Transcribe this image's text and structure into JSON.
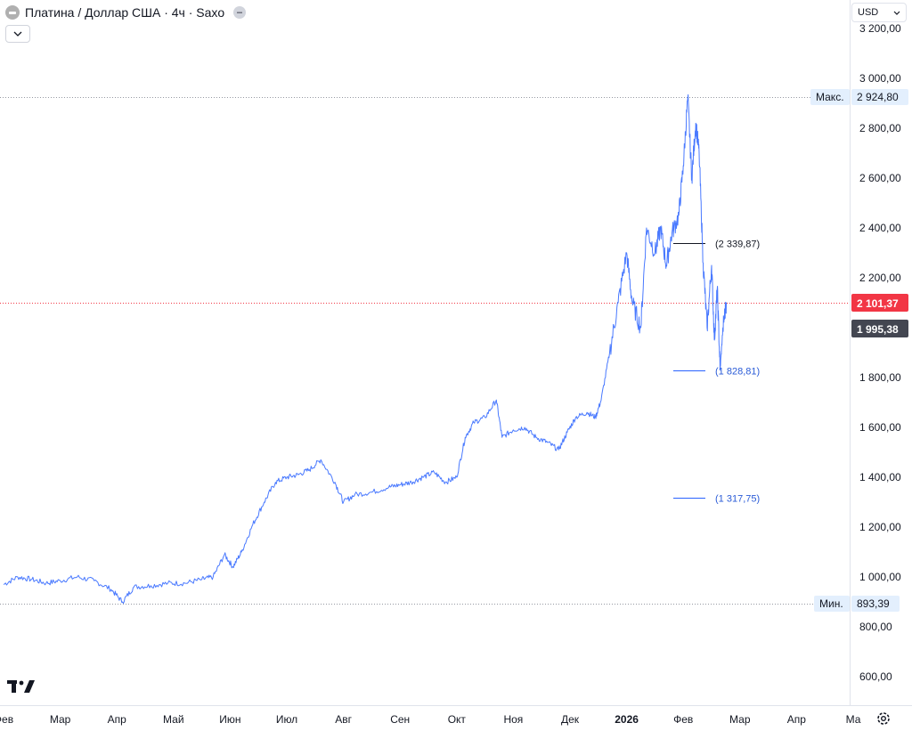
{
  "header": {
    "symbol_title": "Платина / Доллар США · 4ч · Saxo"
  },
  "currency": {
    "label": "USD"
  },
  "colors": {
    "line": "#2962ff",
    "last_price_bg": "#f23645",
    "text": "#131722",
    "grid_dots": "#9598a1"
  },
  "chart_data": {
    "type": "line",
    "x_axis_labels": [
      "Фев",
      "Мар",
      "Апр",
      "Май",
      "Июн",
      "Июл",
      "Авг",
      "Сен",
      "Окт",
      "Ноя",
      "Дек",
      "2026",
      "Фев",
      "Мар",
      "Апр",
      "Ма"
    ],
    "y_tick_labels": [
      "3 200,00",
      "3 000,00",
      "2 800,00",
      "2 600,00",
      "2 400,00",
      "2 200,00",
      "1 800,00",
      "1 600,00",
      "1 400,00",
      "1 200,00",
      "1 000,00",
      "800,00",
      "600,00"
    ],
    "y_tick_values": [
      3200,
      3000,
      2800,
      2600,
      2400,
      2200,
      1800,
      1600,
      1400,
      1200,
      1000,
      800,
      600
    ],
    "max": {
      "label": "Макс.",
      "value": 2924.8,
      "value_text": "2 924,80"
    },
    "min": {
      "label": "Мин.",
      "value": 893.39,
      "value_text": "893,39"
    },
    "last_price": {
      "value": 2101.37,
      "value_text": "2 101,37"
    },
    "price_tag": {
      "value": 1995.38,
      "value_text": "1 995,38"
    },
    "levels": [
      {
        "value": 2339.87,
        "label": "(2 339,87)"
      },
      {
        "value": 1828.81,
        "label": "(1 828,81)"
      },
      {
        "value": 1317.75,
        "label": "(1 317,75)"
      }
    ],
    "series": [
      {
        "points": [
          [
            0,
            970
          ],
          [
            0.25,
            1000
          ],
          [
            0.5,
            990
          ],
          [
            0.75,
            975
          ],
          [
            1.0,
            985
          ],
          [
            1.3,
            1000
          ],
          [
            1.6,
            985
          ],
          [
            1.9,
            950
          ],
          [
            2.1,
            900
          ],
          [
            2.3,
            960
          ],
          [
            2.6,
            965
          ],
          [
            2.9,
            975
          ],
          [
            3.2,
            975
          ],
          [
            3.5,
            990
          ],
          [
            3.7,
            1000
          ],
          [
            3.9,
            1090
          ],
          [
            4.05,
            1040
          ],
          [
            4.2,
            1100
          ],
          [
            4.4,
            1210
          ],
          [
            4.6,
            1300
          ],
          [
            4.8,
            1380
          ],
          [
            5.0,
            1400
          ],
          [
            5.2,
            1410
          ],
          [
            5.4,
            1430
          ],
          [
            5.6,
            1470
          ],
          [
            5.85,
            1380
          ],
          [
            6.0,
            1300
          ],
          [
            6.2,
            1330
          ],
          [
            6.5,
            1340
          ],
          [
            6.8,
            1360
          ],
          [
            7.0,
            1370
          ],
          [
            7.2,
            1380
          ],
          [
            7.4,
            1400
          ],
          [
            7.6,
            1420
          ],
          [
            7.8,
            1380
          ],
          [
            8.0,
            1400
          ],
          [
            8.15,
            1560
          ],
          [
            8.3,
            1620
          ],
          [
            8.5,
            1640
          ],
          [
            8.7,
            1710
          ],
          [
            8.8,
            1560
          ],
          [
            9.0,
            1590
          ],
          [
            9.2,
            1600
          ],
          [
            9.4,
            1560
          ],
          [
            9.6,
            1540
          ],
          [
            9.8,
            1510
          ],
          [
            9.95,
            1580
          ],
          [
            10.1,
            1640
          ],
          [
            10.3,
            1660
          ],
          [
            10.45,
            1640
          ],
          [
            10.55,
            1710
          ],
          [
            10.7,
            1900
          ],
          [
            10.85,
            2100
          ],
          [
            11.0,
            2300
          ],
          [
            11.1,
            2100
          ],
          [
            11.25,
            2000
          ],
          [
            11.35,
            2400
          ],
          [
            11.5,
            2300
          ],
          [
            11.6,
            2400
          ],
          [
            11.7,
            2250
          ],
          [
            11.8,
            2380
          ],
          [
            11.92,
            2450
          ],
          [
            12.0,
            2650
          ],
          [
            12.08,
            2924.8
          ],
          [
            12.15,
            2600
          ],
          [
            12.22,
            2820
          ],
          [
            12.28,
            2700
          ],
          [
            12.35,
            2260
          ],
          [
            12.42,
            2000
          ],
          [
            12.5,
            2250
          ],
          [
            12.55,
            1950
          ],
          [
            12.6,
            2160
          ],
          [
            12.65,
            1828.8
          ],
          [
            12.7,
            2000
          ],
          [
            12.76,
            2101.37
          ]
        ]
      }
    ]
  }
}
